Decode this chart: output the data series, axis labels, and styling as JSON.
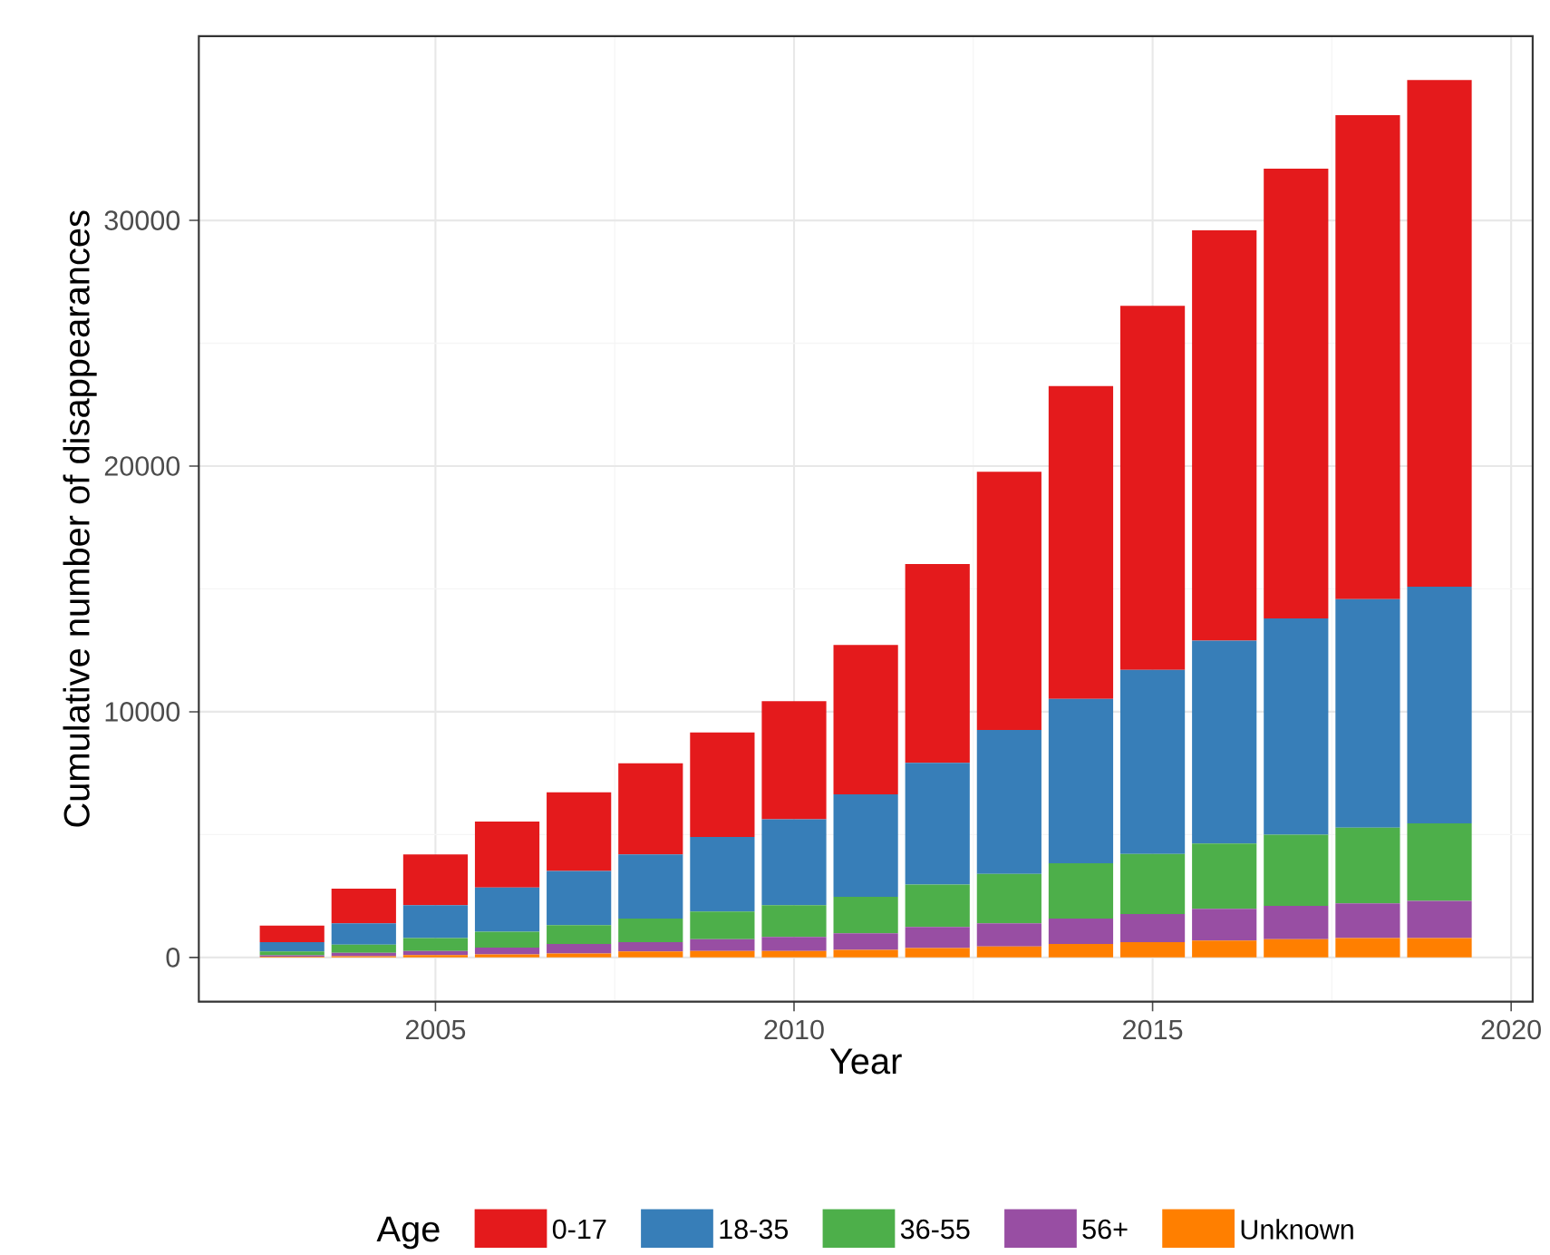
{
  "chart_data": {
    "type": "bar",
    "stacked": true,
    "xlabel": "Year",
    "ylabel": "Cumulative number of disappearances",
    "legend_title": "Age",
    "legend": "bottom",
    "grid": true,
    "x": [
      2003,
      2004,
      2005,
      2006,
      2007,
      2008,
      2009,
      2010,
      2011,
      2012,
      2013,
      2014,
      2015,
      2016,
      2017,
      2018,
      2019
    ],
    "xlim": [
      2001.7,
      2020.3
    ],
    "xticks": [
      2005,
      2010,
      2015,
      2020
    ],
    "ylim": [
      -1800,
      37500
    ],
    "yticks": [
      0,
      10000,
      20000,
      30000
    ],
    "series": [
      {
        "name": "Unknown",
        "color": "#ff7f00",
        "values": [
          30,
          50,
          100,
          120,
          160,
          240,
          260,
          260,
          310,
          380,
          450,
          550,
          620,
          690,
          740,
          790,
          790
        ]
      },
      {
        "name": "56+",
        "color": "#984ea3",
        "values": [
          60,
          140,
          160,
          280,
          390,
          380,
          480,
          570,
          670,
          860,
          940,
          1030,
          1150,
          1290,
          1360,
          1410,
          1510
        ]
      },
      {
        "name": "36-55",
        "color": "#4daf4a",
        "values": [
          150,
          330,
          530,
          650,
          760,
          960,
          1130,
          1300,
          1490,
          1730,
          2010,
          2250,
          2440,
          2660,
          2900,
          3080,
          3160
        ]
      },
      {
        "name": "18-35",
        "color": "#377eb8",
        "values": [
          380,
          870,
          1340,
          1800,
          2210,
          2610,
          3030,
          3490,
          4170,
          4950,
          5860,
          6690,
          7490,
          8250,
          8800,
          9300,
          9630
        ]
      },
      {
        "name": "0-17",
        "color": "#e41a1c",
        "values": [
          680,
          1410,
          2060,
          2680,
          3200,
          3710,
          4260,
          4810,
          6080,
          8090,
          10510,
          12740,
          14820,
          16710,
          18310,
          19700,
          20620
        ]
      }
    ]
  }
}
